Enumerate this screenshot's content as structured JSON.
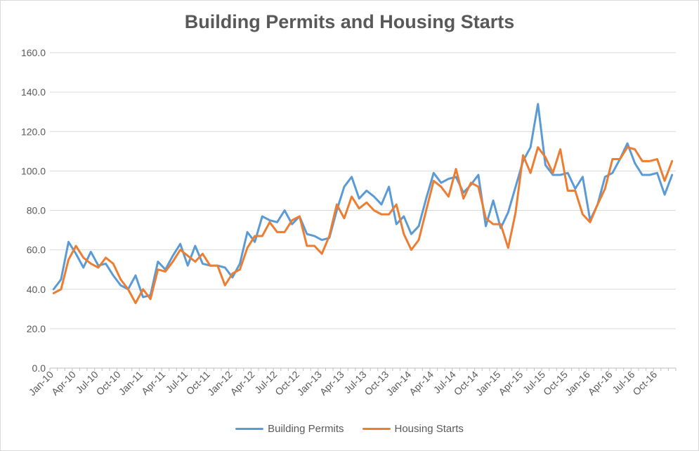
{
  "chart_data": {
    "type": "line",
    "title": "Building Permits and Housing Starts",
    "ylim": [
      0,
      160
    ],
    "yticks": [
      "0.0",
      "20.0",
      "40.0",
      "60.0",
      "80.0",
      "100.0",
      "120.0",
      "140.0",
      "160.0"
    ],
    "grid": true,
    "legend_position": "bottom",
    "x_tick_labels": [
      "Jan-10",
      "Apr-10",
      "Jul-10",
      "Oct-10",
      "Jan-11",
      "Apr-11",
      "Jul-11",
      "Oct-11",
      "Jan-12",
      "Apr-12",
      "Jul-12",
      "Oct-12",
      "Jan-13",
      "Apr-13",
      "Jul-13",
      "Oct-13",
      "Jan-14",
      "Apr-14",
      "Jul-14",
      "Oct-14",
      "Jan-15",
      "Apr-15",
      "Jul-15",
      "Oct-15",
      "Jan-16",
      "Apr-16",
      "Jul-16",
      "Oct-16"
    ],
    "x_start": "2010-01",
    "series": [
      {
        "name": "Building Permits",
        "color": "#5B9BD5",
        "values": [
          40,
          45,
          64,
          58,
          51,
          59,
          52,
          53,
          47,
          42,
          40,
          47,
          36,
          37,
          54,
          50,
          57,
          63,
          52,
          62,
          53,
          52,
          52,
          51,
          46,
          53,
          69,
          64,
          77,
          75,
          74,
          80,
          73,
          77,
          68,
          67,
          65,
          66,
          80,
          92,
          97,
          86,
          90,
          87,
          83,
          92,
          73,
          77,
          68,
          72,
          86,
          99,
          94,
          96,
          97,
          89,
          93,
          98,
          72,
          85,
          71,
          79,
          92,
          105,
          112,
          134,
          103,
          98,
          98,
          99,
          91,
          97,
          75,
          83,
          97,
          99,
          106,
          114,
          104,
          98,
          98,
          99,
          88,
          98
        ],
        "note": ""
      },
      {
        "name": "Housing Starts",
        "color": "#ED7D31",
        "values": [
          38,
          40,
          55,
          62,
          56,
          53,
          51,
          56,
          53,
          45,
          40,
          33,
          40,
          35,
          50,
          49,
          54,
          60,
          57,
          54,
          58,
          52,
          52,
          42,
          48,
          50,
          61,
          67,
          67,
          74,
          69,
          69,
          75,
          77,
          62,
          62,
          58,
          67,
          83,
          76,
          87,
          81,
          84,
          80,
          78,
          78,
          83,
          68,
          60,
          65,
          80,
          95,
          92,
          87,
          101,
          86,
          94,
          92,
          76,
          73,
          73,
          61,
          79,
          108,
          99,
          112,
          107,
          99,
          111,
          90,
          90,
          78,
          74,
          83,
          91,
          106,
          106,
          112,
          111,
          105,
          105,
          106,
          95,
          105
        ]
      }
    ],
    "legend": [
      "Building Permits",
      "Housing Starts"
    ]
  }
}
